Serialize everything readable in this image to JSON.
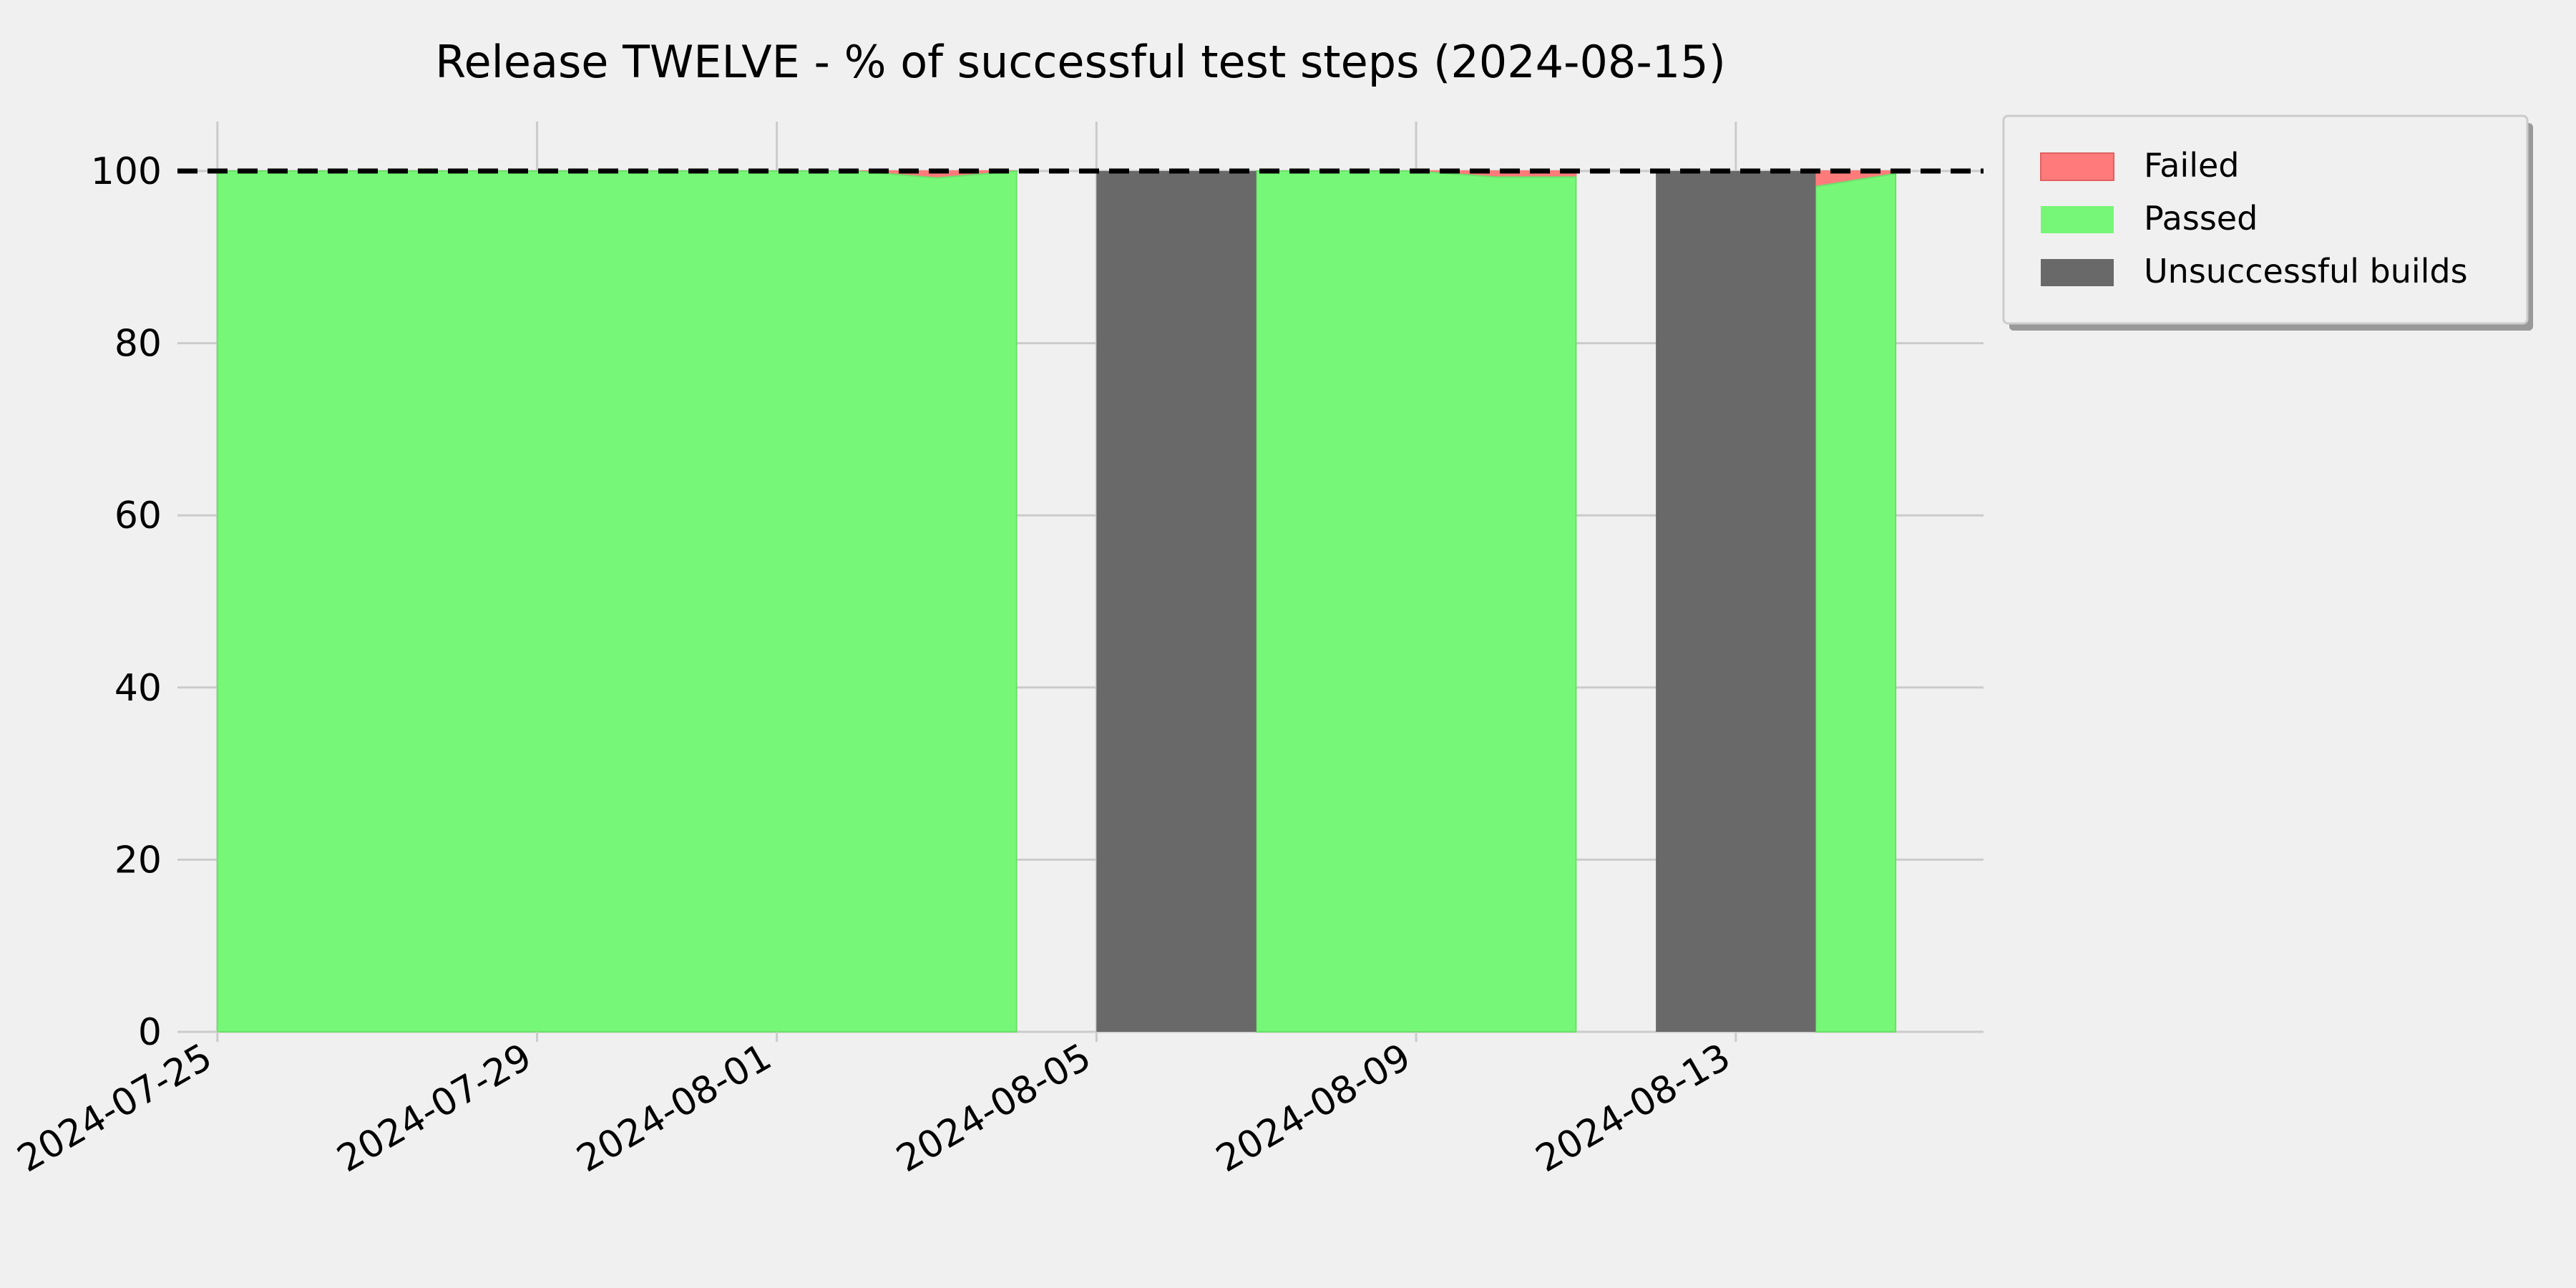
{
  "chart_data": {
    "type": "area",
    "title": "Release TWELVE - % of successful test steps (2024-08-15)",
    "xlabel": "",
    "ylabel": "",
    "ylim": [
      0,
      100
    ],
    "x_range": [
      "2024-07-25",
      "2024-08-15"
    ],
    "x_ticks": [
      "2024-07-25",
      "2024-07-29",
      "2024-08-01",
      "2024-08-05",
      "2024-08-09",
      "2024-08-13"
    ],
    "y_ticks": [
      0,
      20,
      40,
      60,
      80,
      100
    ],
    "grid": true,
    "legend_position": "outside top-right",
    "reference_line": {
      "y": 100,
      "style": "dashed",
      "color": "#000000"
    },
    "x": [
      "2024-07-25",
      "2024-07-26",
      "2024-07-27",
      "2024-07-28",
      "2024-07-29",
      "2024-07-30",
      "2024-07-31",
      "2024-08-01",
      "2024-08-02",
      "2024-08-03",
      "2024-08-04",
      "2024-08-05",
      "2024-08-06",
      "2024-08-07",
      "2024-08-08",
      "2024-08-09",
      "2024-08-10",
      "2024-08-11",
      "2024-08-12",
      "2024-08-13",
      "2024-08-14",
      "2024-08-15"
    ],
    "series": [
      {
        "name": "Passed",
        "color": "#77f777",
        "values": [
          100,
          100,
          100,
          100,
          100,
          100,
          100,
          100,
          100,
          99.2,
          100,
          null,
          null,
          100,
          100,
          100,
          99.3,
          99.3,
          null,
          null,
          98.2,
          99.7
        ]
      },
      {
        "name": "Failed",
        "color": "#ff7b7b",
        "values": [
          0,
          0,
          0,
          0,
          0,
          0,
          0,
          0,
          0,
          0.8,
          0,
          null,
          null,
          0,
          0,
          0,
          0.7,
          0.7,
          null,
          null,
          1.8,
          0.3
        ]
      }
    ],
    "unsuccessful_builds": {
      "name": "Unsuccessful builds",
      "color": "#696969",
      "ranges": [
        [
          "2024-08-05",
          "2024-08-07"
        ],
        [
          "2024-08-12",
          "2024-08-14"
        ]
      ]
    },
    "legend": [
      "Failed",
      "Passed",
      "Unsuccessful builds"
    ],
    "colors": {
      "background": "#f0f0f0",
      "grid": "#cbcbcb",
      "legend_frame": "#cccccc",
      "legend_shadow": "#999999"
    }
  }
}
